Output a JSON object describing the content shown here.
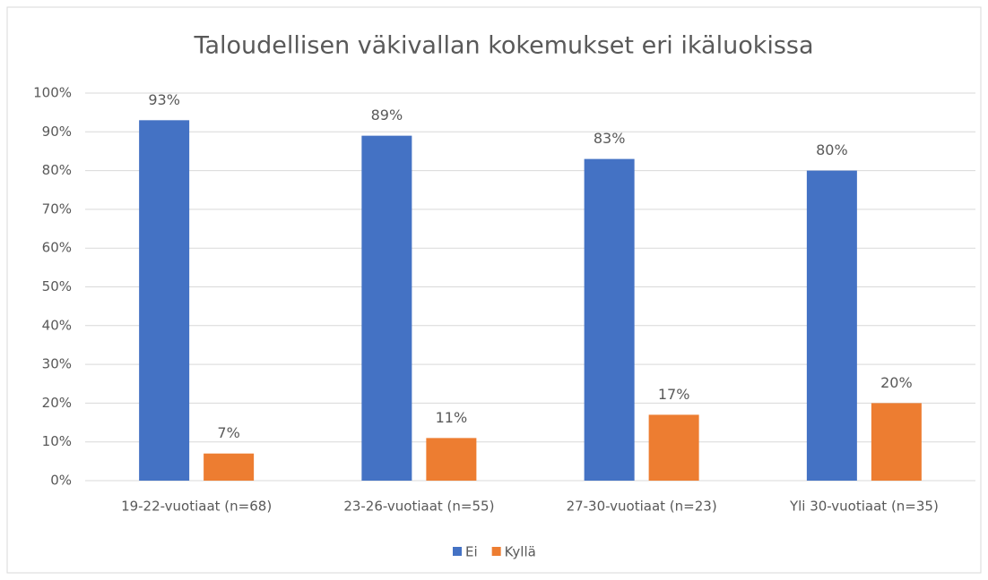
{
  "chart_data": {
    "type": "bar",
    "title": "Taloudellisen väkivallan kokemukset eri ikäluokissa",
    "categories": [
      "19-22-vuotiaat (n=68)",
      "23-26-vuotiaat (n=55)",
      "27-30-vuotiaat (n=23)",
      "Yli 30-vuotiaat (n=35)"
    ],
    "series": [
      {
        "name": "Ei",
        "color": "#4472c4",
        "values": [
          93,
          89,
          83,
          80
        ],
        "value_labels": [
          "93%",
          "89%",
          "83%",
          "80%"
        ]
      },
      {
        "name": "Kyllä",
        "color": "#ed7d31",
        "values": [
          7,
          11,
          17,
          20
        ],
        "value_labels": [
          "7%",
          "11%",
          "17%",
          "20%"
        ]
      }
    ],
    "ylim": [
      0,
      100
    ],
    "yticks": [
      {
        "value": 0,
        "label": "0%"
      },
      {
        "value": 10,
        "label": "10%"
      },
      {
        "value": 20,
        "label": "20%"
      },
      {
        "value": 30,
        "label": "30%"
      },
      {
        "value": 40,
        "label": "40%"
      },
      {
        "value": 50,
        "label": "50%"
      },
      {
        "value": 60,
        "label": "60%"
      },
      {
        "value": 70,
        "label": "70%"
      },
      {
        "value": 80,
        "label": "80%"
      },
      {
        "value": 90,
        "label": "90%"
      },
      {
        "value": 100,
        "label": "100%"
      }
    ],
    "grid": true,
    "legend": "bottom"
  }
}
